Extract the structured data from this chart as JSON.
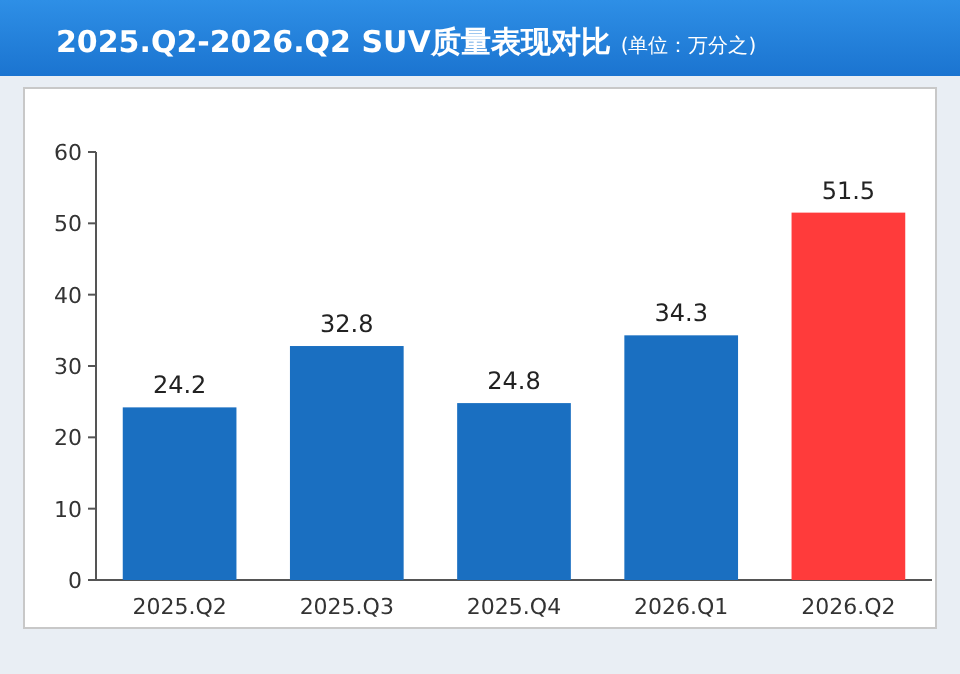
{
  "chart_data": {
    "type": "bar",
    "title": "2025.Q2-2026.Q2 SUV质量表现对比",
    "subtitle": "(单位：万分之)",
    "categories": [
      "2025.Q2",
      "2025.Q3",
      "2025.Q4",
      "2026.Q1",
      "2026.Q2"
    ],
    "values": [
      24.2,
      32.8,
      24.8,
      34.3,
      51.5
    ],
    "colors": [
      "#1a6fc1",
      "#1a6fc1",
      "#1a6fc1",
      "#1a6fc1",
      "#ff3b3b"
    ],
    "ylim": [
      0,
      60
    ],
    "yticks": [
      0,
      10,
      20,
      30,
      40,
      50,
      60
    ],
    "data_labels": true,
    "grid": false
  }
}
